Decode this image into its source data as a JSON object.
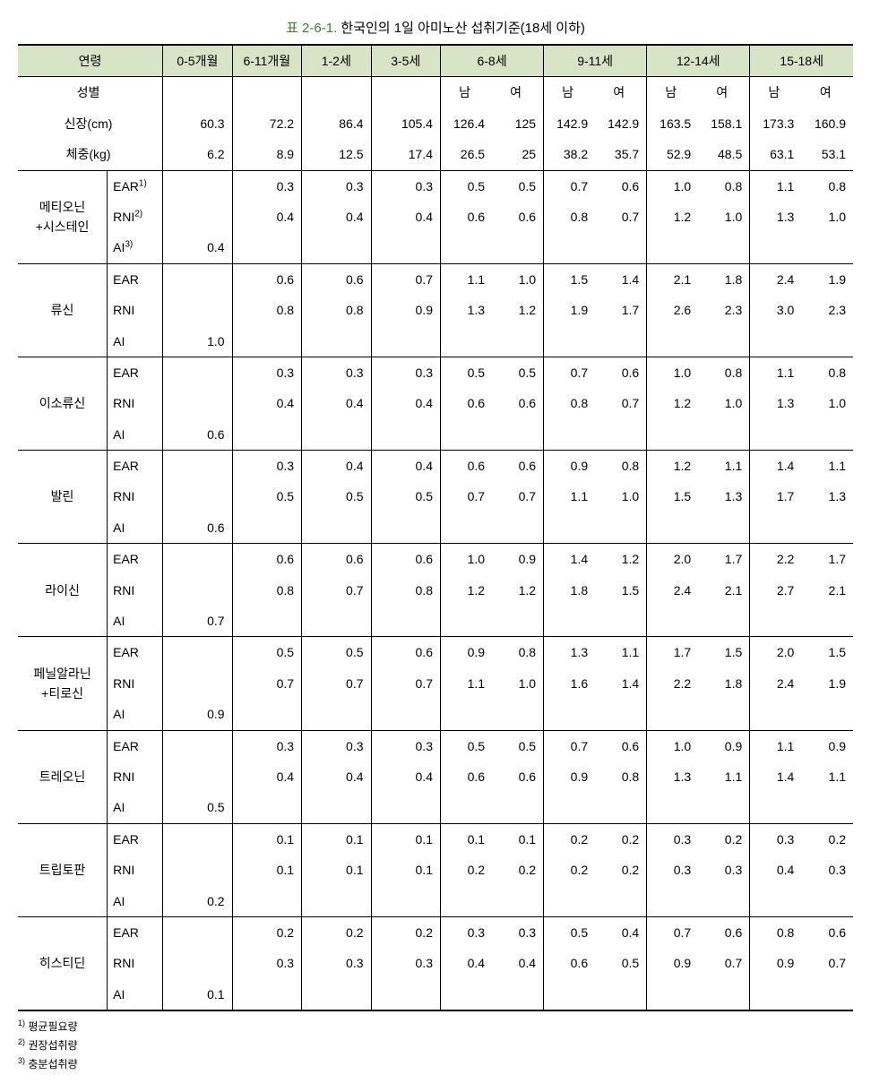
{
  "caption_prefix": "표 2-6-1.",
  "caption_text": "한국인의 1일 아미노산 섭취기준(18세 이하)",
  "header": {
    "age_label": "연령",
    "ages": [
      "0-5개월",
      "6-11개월",
      "1-2세",
      "3-5세",
      "6-8세",
      "9-11세",
      "12-14세",
      "15-18세"
    ],
    "sex_label": "성별",
    "sex_m": "남",
    "sex_f": "여",
    "height_label": "신장(cm)",
    "weight_label": "체중(kg)",
    "height": [
      "60.3",
      "72.2",
      "86.4",
      "105.4",
      "126.4",
      "125",
      "142.9",
      "142.9",
      "163.5",
      "158.1",
      "173.3",
      "160.9"
    ],
    "weight": [
      "6.2",
      "8.9",
      "12.5",
      "17.4",
      "26.5",
      "25",
      "38.2",
      "35.7",
      "52.9",
      "48.5",
      "63.1",
      "53.1"
    ]
  },
  "meas_labels": {
    "ear": "EAR",
    "rni": "RNI",
    "ai": "AI"
  },
  "amino": [
    {
      "name": "메티오닌\n+시스테인",
      "ear": [
        "",
        "0.3",
        "0.3",
        "0.3",
        "0.5",
        "0.5",
        "0.7",
        "0.6",
        "1.0",
        "0.8",
        "1.1",
        "0.8"
      ],
      "rni": [
        "",
        "0.4",
        "0.4",
        "0.4",
        "0.6",
        "0.6",
        "0.8",
        "0.7",
        "1.2",
        "1.0",
        "1.3",
        "1.0"
      ],
      "ai": [
        "0.4",
        "",
        "",
        "",
        "",
        "",
        "",
        "",
        "",
        "",
        "",
        ""
      ]
    },
    {
      "name": "류신",
      "ear": [
        "",
        "0.6",
        "0.6",
        "0.7",
        "1.1",
        "1.0",
        "1.5",
        "1.4",
        "2.1",
        "1.8",
        "2.4",
        "1.9"
      ],
      "rni": [
        "",
        "0.8",
        "0.8",
        "0.9",
        "1.3",
        "1.2",
        "1.9",
        "1.7",
        "2.6",
        "2.3",
        "3.0",
        "2.3"
      ],
      "ai": [
        "1.0",
        "",
        "",
        "",
        "",
        "",
        "",
        "",
        "",
        "",
        "",
        ""
      ]
    },
    {
      "name": "이소류신",
      "ear": [
        "",
        "0.3",
        "0.3",
        "0.3",
        "0.5",
        "0.5",
        "0.7",
        "0.6",
        "1.0",
        "0.8",
        "1.1",
        "0.8"
      ],
      "rni": [
        "",
        "0.4",
        "0.4",
        "0.4",
        "0.6",
        "0.6",
        "0.8",
        "0.7",
        "1.2",
        "1.0",
        "1.3",
        "1.0"
      ],
      "ai": [
        "0.6",
        "",
        "",
        "",
        "",
        "",
        "",
        "",
        "",
        "",
        "",
        ""
      ]
    },
    {
      "name": "발린",
      "ear": [
        "",
        "0.3",
        "0.4",
        "0.4",
        "0.6",
        "0.6",
        "0.9",
        "0.8",
        "1.2",
        "1.1",
        "1.4",
        "1.1"
      ],
      "rni": [
        "",
        "0.5",
        "0.5",
        "0.5",
        "0.7",
        "0.7",
        "1.1",
        "1.0",
        "1.5",
        "1.3",
        "1.7",
        "1.3"
      ],
      "ai": [
        "0.6",
        "",
        "",
        "",
        "",
        "",
        "",
        "",
        "",
        "",
        "",
        ""
      ]
    },
    {
      "name": "라이신",
      "ear": [
        "",
        "0.6",
        "0.6",
        "0.6",
        "1.0",
        "0.9",
        "1.4",
        "1.2",
        "2.0",
        "1.7",
        "2.2",
        "1.7"
      ],
      "rni": [
        "",
        "0.8",
        "0.7",
        "0.8",
        "1.2",
        "1.2",
        "1.8",
        "1.5",
        "2.4",
        "2.1",
        "2.7",
        "2.1"
      ],
      "ai": [
        "0.7",
        "",
        "",
        "",
        "",
        "",
        "",
        "",
        "",
        "",
        "",
        ""
      ]
    },
    {
      "name": "페닐알라닌\n+티로신",
      "ear": [
        "",
        "0.5",
        "0.5",
        "0.6",
        "0.9",
        "0.8",
        "1.3",
        "1.1",
        "1.7",
        "1.5",
        "2.0",
        "1.5"
      ],
      "rni": [
        "",
        "0.7",
        "0.7",
        "0.7",
        "1.1",
        "1.0",
        "1.6",
        "1.4",
        "2.2",
        "1.8",
        "2.4",
        "1.9"
      ],
      "ai": [
        "0.9",
        "",
        "",
        "",
        "",
        "",
        "",
        "",
        "",
        "",
        "",
        ""
      ]
    },
    {
      "name": "트레오닌",
      "ear": [
        "",
        "0.3",
        "0.3",
        "0.3",
        "0.5",
        "0.5",
        "0.7",
        "0.6",
        "1.0",
        "0.9",
        "1.1",
        "0.9"
      ],
      "rni": [
        "",
        "0.4",
        "0.4",
        "0.4",
        "0.6",
        "0.6",
        "0.9",
        "0.8",
        "1.3",
        "1.1",
        "1.4",
        "1.1"
      ],
      "ai": [
        "0.5",
        "",
        "",
        "",
        "",
        "",
        "",
        "",
        "",
        "",
        "",
        ""
      ]
    },
    {
      "name": "트립토판",
      "ear": [
        "",
        "0.1",
        "0.1",
        "0.1",
        "0.1",
        "0.1",
        "0.2",
        "0.2",
        "0.3",
        "0.2",
        "0.3",
        "0.2"
      ],
      "rni": [
        "",
        "0.1",
        "0.1",
        "0.1",
        "0.2",
        "0.2",
        "0.2",
        "0.2",
        "0.3",
        "0.3",
        "0.4",
        "0.3"
      ],
      "ai": [
        "0.2",
        "",
        "",
        "",
        "",
        "",
        "",
        "",
        "",
        "",
        "",
        ""
      ]
    },
    {
      "name": "히스티딘",
      "ear": [
        "",
        "0.2",
        "0.2",
        "0.2",
        "0.3",
        "0.3",
        "0.5",
        "0.4",
        "0.7",
        "0.6",
        "0.8",
        "0.6"
      ],
      "rni": [
        "",
        "0.3",
        "0.3",
        "0.3",
        "0.4",
        "0.4",
        "0.6",
        "0.5",
        "0.9",
        "0.7",
        "0.9",
        "0.7"
      ],
      "ai": [
        "0.1",
        "",
        "",
        "",
        "",
        "",
        "",
        "",
        "",
        "",
        "",
        ""
      ]
    }
  ],
  "footnotes": [
    "평균필요량",
    "권장섭취량",
    "충분섭취량"
  ]
}
